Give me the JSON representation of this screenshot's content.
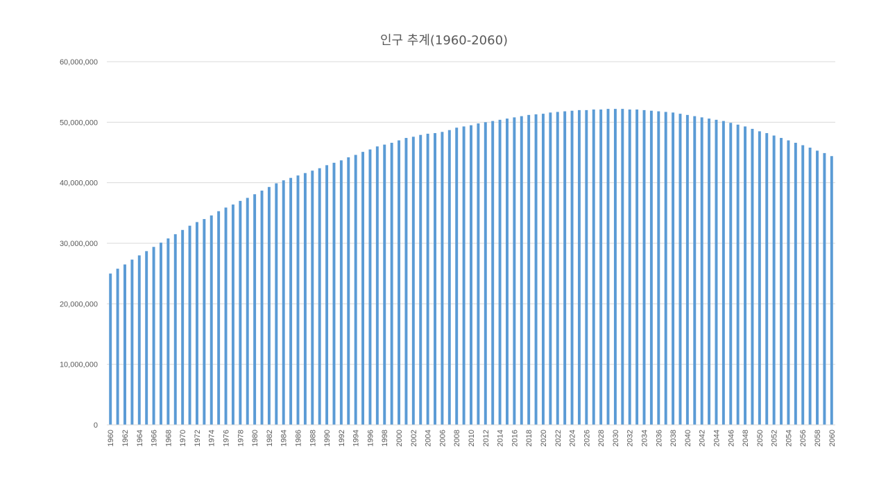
{
  "chart_data": {
    "type": "bar",
    "title": "인구 추계(1960-2060)",
    "xlabel": "",
    "ylabel": "",
    "ylim": [
      0,
      60000000
    ],
    "yticks": [
      "0",
      "10,000,000",
      "20,000,000",
      "30,000,000",
      "40,000,000",
      "50,000,000",
      "60,000,000"
    ],
    "grid": true,
    "legend": "none",
    "colors": {
      "bar": "#5b9bd5",
      "grid": "#d9d9d9",
      "text": "#595959"
    },
    "categories": [
      "1960",
      "1961",
      "1962",
      "1963",
      "1964",
      "1965",
      "1966",
      "1967",
      "1968",
      "1969",
      "1970",
      "1971",
      "1972",
      "1973",
      "1974",
      "1975",
      "1976",
      "1977",
      "1978",
      "1979",
      "1980",
      "1981",
      "1982",
      "1983",
      "1984",
      "1985",
      "1986",
      "1987",
      "1988",
      "1989",
      "1990",
      "1991",
      "1992",
      "1993",
      "1994",
      "1995",
      "1996",
      "1997",
      "1998",
      "1999",
      "2000",
      "2001",
      "2002",
      "2003",
      "2004",
      "2005",
      "2006",
      "2007",
      "2008",
      "2009",
      "2010",
      "2011",
      "2012",
      "2013",
      "2014",
      "2015",
      "2016",
      "2017",
      "2018",
      "2019",
      "2020",
      "2021",
      "2022",
      "2023",
      "2024",
      "2025",
      "2026",
      "2027",
      "2028",
      "2029",
      "2030",
      "2031",
      "2032",
      "2033",
      "2034",
      "2035",
      "2036",
      "2037",
      "2038",
      "2039",
      "2040",
      "2041",
      "2042",
      "2043",
      "2044",
      "2045",
      "2046",
      "2047",
      "2048",
      "2049",
      "2050",
      "2051",
      "2052",
      "2053",
      "2054",
      "2055",
      "2056",
      "2057",
      "2058",
      "2059",
      "2060"
    ],
    "values": [
      25000000,
      25800000,
      26500000,
      27300000,
      28000000,
      28700000,
      29400000,
      30100000,
      30800000,
      31500000,
      32200000,
      32900000,
      33500000,
      34000000,
      34600000,
      35300000,
      35900000,
      36400000,
      37000000,
      37500000,
      38100000,
      38700000,
      39300000,
      39900000,
      40400000,
      40800000,
      41200000,
      41600000,
      42000000,
      42400000,
      42900000,
      43300000,
      43700000,
      44200000,
      44600000,
      45100000,
      45500000,
      46000000,
      46300000,
      46600000,
      47000000,
      47400000,
      47600000,
      47900000,
      48100000,
      48200000,
      48400000,
      48700000,
      49100000,
      49300000,
      49500000,
      49800000,
      50000000,
      50200000,
      50400000,
      50600000,
      50800000,
      51000000,
      51200000,
      51300000,
      51400000,
      51600000,
      51700000,
      51800000,
      51900000,
      52000000,
      52000000,
      52100000,
      52100000,
      52200000,
      52200000,
      52200000,
      52100000,
      52100000,
      52000000,
      51900000,
      51800000,
      51700000,
      51600000,
      51400000,
      51200000,
      51000000,
      50800000,
      50600000,
      50400000,
      50200000,
      49900000,
      49600000,
      49300000,
      48900000,
      48500000,
      48200000,
      47800000,
      47400000,
      47000000,
      46600000,
      46200000,
      45800000,
      45300000,
      44900000,
      44400000
    ],
    "xtick_labels": [
      "1960",
      "1962",
      "1964",
      "1966",
      "1968",
      "1970",
      "1972",
      "1974",
      "1976",
      "1978",
      "1980",
      "1982",
      "1984",
      "1986",
      "1988",
      "1990",
      "1992",
      "1994",
      "1996",
      "1998",
      "2000",
      "2002",
      "2004",
      "2006",
      "2008",
      "2010",
      "2012",
      "2014",
      "2016",
      "2018",
      "2020",
      "2022",
      "2024",
      "2026",
      "2028",
      "2030",
      "2032",
      "2034",
      "2036",
      "2038",
      "2040",
      "2042",
      "2044",
      "2046",
      "2048",
      "2050",
      "2052",
      "2054",
      "2056",
      "2058",
      "2060"
    ]
  }
}
